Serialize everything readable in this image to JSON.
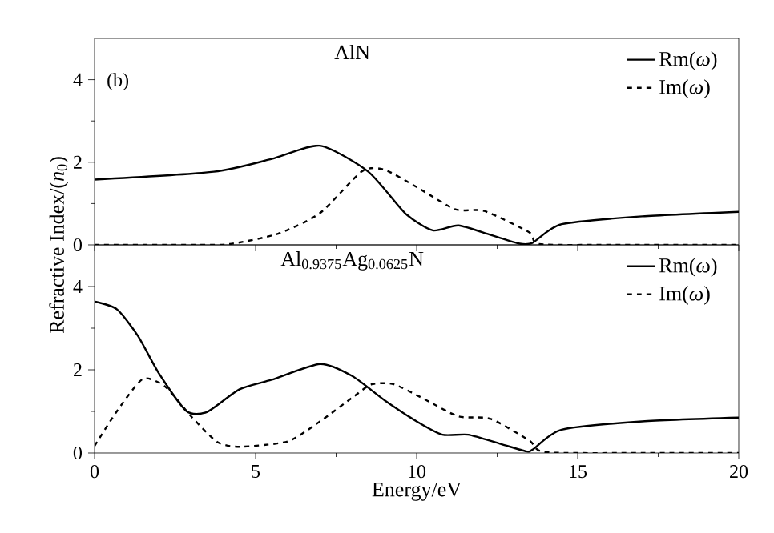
{
  "chart_data": [
    {
      "type": "line",
      "title": "AlN",
      "annotations": [
        "(b)"
      ],
      "ylabel": "Refractive Index/(*n*$_{0}$)",
      "xlim": [
        0,
        20
      ],
      "xticks": [
        0,
        5,
        10,
        15,
        20
      ],
      "ylim": [
        0,
        5
      ],
      "yticks": [
        0,
        2,
        4
      ],
      "legend": "top right",
      "tick_labels": "y",
      "series": [
        {
          "name": "Rm(*ω*)",
          "color": "#000000",
          "line_style": "solid",
          "x": [
            0,
            3.7,
            5.5,
            7.0,
            8.5,
            9.65,
            10.5,
            11.3,
            12.3,
            13.2,
            13.6,
            14.5,
            17,
            20
          ],
          "values": [
            1.58,
            1.77,
            2.08,
            2.4,
            1.77,
            0.76,
            0.35,
            0.47,
            0.24,
            0.03,
            0.05,
            0.5,
            0.69,
            0.8
          ]
        },
        {
          "name": "Im(*ω*)",
          "color": "#000000",
          "line_style": "dashed",
          "x": [
            0,
            3,
            4.2,
            5.7,
            7.0,
            8.3,
            9.0,
            10.0,
            11.2,
            12.1,
            13.5,
            13.8,
            16,
            20
          ],
          "values": [
            0,
            0,
            0.02,
            0.27,
            0.77,
            1.78,
            1.82,
            1.4,
            0.86,
            0.82,
            0.3,
            0.02,
            0,
            0
          ]
        }
      ]
    },
    {
      "type": "line",
      "title": "Al$_{0.9375}$Ag$_{0.0625}$N",
      "xlabel": "Energy/eV",
      "xlim": [
        0,
        20
      ],
      "xticks": [
        0,
        5,
        10,
        15,
        20
      ],
      "ylim": [
        0,
        5
      ],
      "yticks": [
        0,
        2,
        4
      ],
      "legend": "top right",
      "series": [
        {
          "name": "Rm(*ω*)",
          "color": "#000000",
          "line_style": "solid",
          "x": [
            0,
            0.7,
            1.35,
            2.0,
            2.85,
            3.5,
            4.5,
            5.5,
            7.0,
            8.0,
            9.0,
            10.0,
            10.8,
            11.6,
            12.6,
            13.4,
            13.6,
            14.5,
            17,
            20
          ],
          "values": [
            3.64,
            3.45,
            2.81,
            1.91,
            1.01,
            0.99,
            1.53,
            1.76,
            2.14,
            1.85,
            1.27,
            0.76,
            0.44,
            0.44,
            0.22,
            0.04,
            0.08,
            0.56,
            0.76,
            0.85
          ]
        },
        {
          "name": "Im(*ω*)",
          "color": "#000000",
          "line_style": "dashed",
          "x": [
            0,
            0.7,
            1.5,
            2.2,
            3.0,
            3.8,
            4.5,
            6.0,
            7.0,
            8.0,
            8.6,
            9.3,
            10.3,
            11.3,
            12.3,
            13.5,
            14.0,
            17,
            20
          ],
          "values": [
            0.17,
            1.01,
            1.78,
            1.59,
            0.88,
            0.27,
            0.15,
            0.28,
            0.76,
            1.33,
            1.65,
            1.65,
            1.27,
            0.88,
            0.82,
            0.3,
            0.02,
            0,
            0
          ]
        }
      ]
    }
  ]
}
